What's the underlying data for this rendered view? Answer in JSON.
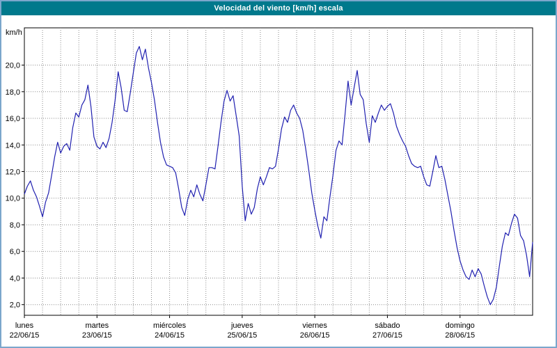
{
  "window": {
    "title": "Velocidad del viento [km/h] escala"
  },
  "colors": {
    "title_bar": "#00798c",
    "frame_border": "#7ba7cc",
    "line": "#2020b0",
    "grid": "#8a8a8a",
    "plot_border": "#000000",
    "plot_background": "#ffffff"
  },
  "chart_data": {
    "type": "line",
    "title": "Velocidad del viento [km/h] escala",
    "ylabel": "km/h",
    "grid": true,
    "legend": false,
    "ylim": [
      1.2,
      22.8
    ],
    "y_ticks": [
      2,
      4,
      6,
      8,
      10,
      12,
      14,
      16,
      18,
      20
    ],
    "y_tick_labels": [
      "2,0",
      "4,0",
      "6,0",
      "8,0",
      "10,0",
      "12,0",
      "14,0",
      "16,0",
      "18,0",
      "20,0"
    ],
    "x_total_hours": 168,
    "x_gridline_interval_hours": 6,
    "days": [
      {
        "name": "lunes",
        "date": "22/06/15"
      },
      {
        "name": "martes",
        "date": "23/06/15"
      },
      {
        "name": "miércoles",
        "date": "24/06/15"
      },
      {
        "name": "jueves",
        "date": "25/06/15"
      },
      {
        "name": "viernes",
        "date": "26/06/15"
      },
      {
        "name": "sábado",
        "date": "27/06/15"
      },
      {
        "name": "domingo",
        "date": "28/06/15"
      }
    ],
    "series": [
      {
        "name": "Velocidad del viento [km/h]",
        "x_step_hours": 1,
        "values": [
          10.3,
          10.9,
          11.3,
          10.6,
          10.1,
          9.4,
          8.6,
          9.7,
          10.4,
          11.7,
          13.1,
          14.2,
          13.4,
          13.9,
          14.1,
          13.6,
          15.3,
          16.4,
          16.1,
          17.0,
          17.4,
          18.5,
          16.9,
          14.6,
          13.9,
          13.7,
          14.2,
          13.8,
          14.5,
          15.7,
          17.4,
          19.5,
          18.3,
          16.6,
          16.5,
          17.9,
          19.4,
          20.9,
          21.4,
          20.4,
          21.2,
          19.8,
          18.7,
          17.4,
          15.7,
          14.2,
          13.1,
          12.5,
          12.4,
          12.3,
          11.9,
          10.7,
          9.3,
          8.7,
          9.9,
          10.6,
          10.1,
          11.0,
          10.3,
          9.8,
          11.0,
          12.3,
          12.3,
          12.2,
          13.9,
          15.7,
          17.3,
          18.1,
          17.3,
          17.7,
          16.2,
          14.7,
          10.9,
          8.3,
          9.6,
          8.8,
          9.3,
          10.7,
          11.6,
          11.0,
          11.6,
          12.3,
          12.2,
          12.4,
          13.7,
          15.2,
          16.1,
          15.7,
          16.6,
          17.0,
          16.4,
          16.0,
          15.1,
          13.7,
          12.1,
          10.4,
          9.1,
          7.9,
          7.0,
          8.6,
          8.3,
          10.1,
          11.7,
          13.6,
          14.3,
          14.0,
          16.3,
          18.8,
          17.0,
          18.3,
          19.6,
          17.8,
          17.4,
          15.6,
          14.2,
          16.2,
          15.7,
          16.4,
          17.0,
          16.6,
          16.9,
          17.1,
          16.4,
          15.4,
          14.8,
          14.3,
          13.9,
          13.2,
          12.6,
          12.4,
          12.3,
          12.4,
          11.6,
          11.0,
          10.9,
          12.0,
          13.2,
          12.3,
          12.4,
          11.4,
          10.2,
          9.0,
          7.6,
          6.3,
          5.3,
          4.6,
          4.1,
          3.9,
          4.6,
          4.1,
          4.7,
          4.3,
          3.4,
          2.6,
          2.0,
          2.4,
          3.3,
          4.9,
          6.4,
          7.4,
          7.2,
          8.1,
          8.8,
          8.5,
          7.2,
          6.8,
          5.7,
          4.1,
          6.7
        ]
      }
    ]
  }
}
